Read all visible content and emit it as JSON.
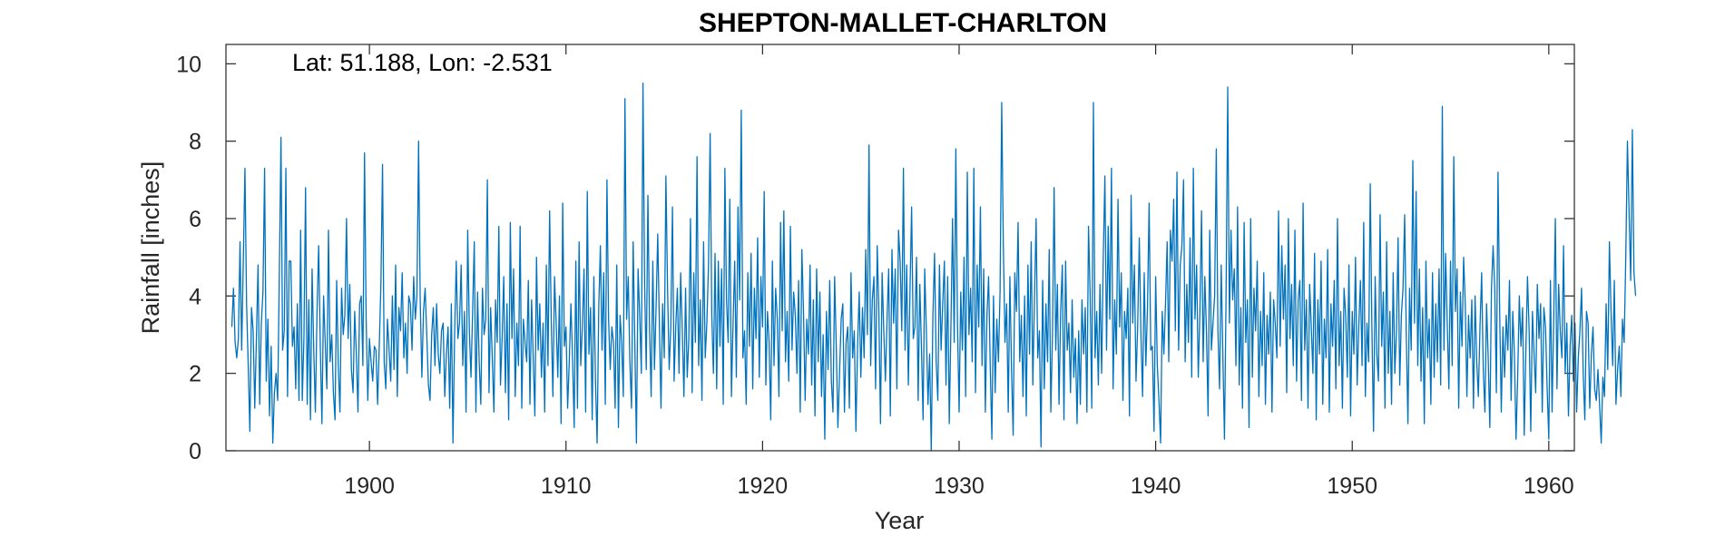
{
  "chart_data": {
    "type": "line",
    "title": "SHEPTON-MALLET-CHARLTON",
    "annotation": "Lat: 51.188, Lon: -2.531",
    "xlabel": "Year",
    "ylabel": "Rainfall [inches]",
    "xlim": [
      1892.7,
      1961.3
    ],
    "ylim": [
      0,
      10.5
    ],
    "xticks": [
      1900,
      1910,
      1920,
      1930,
      1940,
      1950,
      1960
    ],
    "yticks": [
      0,
      2,
      4,
      6,
      8,
      10
    ],
    "grid": false,
    "line_color": "#0072BD",
    "series": [
      {
        "x_start": 1893.0,
        "x_step_years": 0.0833333,
        "values": [
          3.2,
          4.2,
          2.8,
          2.4,
          2.9,
          5.4,
          2.6,
          4.9,
          7.3,
          3.8,
          2.2,
          0.5,
          3.7,
          3.1,
          1.1,
          2.9,
          4.8,
          1.2,
          3.3,
          4.1,
          7.3,
          1.8,
          3.4,
          0.9,
          2.7,
          0.2,
          1.5,
          2.0,
          1.3,
          4.6,
          8.1,
          2.6,
          3.1,
          7.3,
          1.4,
          4.9,
          4.9,
          2.7,
          3.2,
          1.6,
          3.8,
          1.3,
          5.7,
          1.3,
          2.9,
          6.8,
          1.2,
          3.9,
          0.8,
          4.7,
          2.6,
          1.0,
          3.6,
          5.3,
          2.7,
          0.7,
          4.0,
          2.8,
          1.6,
          5.7,
          2.3,
          3.0,
          1.5,
          0.8,
          4.4,
          2.2,
          1.0,
          4.2,
          3.0,
          3.5,
          6.0,
          2.9,
          4.3,
          2.1,
          1.5,
          3.6,
          2.5,
          1.0,
          3.8,
          4.0,
          2.2,
          7.7,
          3.4,
          1.3,
          2.9,
          2.3,
          1.8,
          2.7,
          2.6,
          1.2,
          2.7,
          4.3,
          7.4,
          2.3,
          1.6,
          3.4,
          2.6,
          1.8,
          4.0,
          2.1,
          4.8,
          1.4,
          3.7,
          3.1,
          4.6,
          2.4,
          3.3,
          2.0,
          4.0,
          3.8,
          2.6,
          4.5,
          3.4,
          4.0,
          8.0,
          3.9,
          1.9,
          3.6,
          4.2,
          3.0,
          1.7,
          1.3,
          3.0,
          3.7,
          2.2,
          3.8,
          2.5,
          2.0,
          3.1,
          3.3,
          1.4,
          2.5,
          3.2,
          1.1,
          3.8,
          0.2,
          3.0,
          4.9,
          2.9,
          3.3,
          4.8,
          2.2,
          3.6,
          1.0,
          5.7,
          3.1,
          1.9,
          3.6,
          5.4,
          1.0,
          4.1,
          2.3,
          1.2,
          4.2,
          3.0,
          3.4,
          7.0,
          1.5,
          3.7,
          2.4,
          1.0,
          3.9,
          2.8,
          5.8,
          1.7,
          2.9,
          4.5,
          1.5,
          3.8,
          0.8,
          5.9,
          2.9,
          4.7,
          1.4,
          3.3,
          2.2,
          5.8,
          1.1,
          3.4,
          2.8,
          2.3,
          4.4,
          1.2,
          3.9,
          2.4,
          0.9,
          5.0,
          2.6,
          3.8,
          1.9,
          3.3,
          1.0,
          4.8,
          2.2,
          6.2,
          3.4,
          1.4,
          4.5,
          3.3,
          1.9,
          4.0,
          0.7,
          6.4,
          2.7,
          3.2,
          1.1,
          2.3,
          3.8,
          2.4,
          0.6,
          4.9,
          1.1,
          5.4,
          2.2,
          3.2,
          4.7,
          1.0,
          6.7,
          2.5,
          3.7,
          0.8,
          4.5,
          1.8,
          0.2,
          3.7,
          5.3,
          2.6,
          4.6,
          1.2,
          7.0,
          3.4,
          2.1,
          3.2,
          2.8,
          1.1,
          4.8,
          0.6,
          3.5,
          2.8,
          1.4,
          9.1,
          3.4,
          4.5,
          2.3,
          1.1,
          5.4,
          2.8,
          0.2,
          4.7,
          3.5,
          2.0,
          9.5,
          4.3,
          2.1,
          6.6,
          3.2,
          1.4,
          4.9,
          2.1,
          3.7,
          5.6,
          3.3,
          1.1,
          3.8,
          2.4,
          7.1,
          4.2,
          2.1,
          3.2,
          6.3,
          1.8,
          3.2,
          4.2,
          2.0,
          4.6,
          3.1,
          1.4,
          4.2,
          1.9,
          2.9,
          6.0,
          1.5,
          4.6,
          2.8,
          7.6,
          2.2,
          3.9,
          1.3,
          5.4,
          2.4,
          3.3,
          4.8,
          8.2,
          3.5,
          2.0,
          5.1,
          1.6,
          4.9,
          2.7,
          4.7,
          1.2,
          7.3,
          3.9,
          2.8,
          6.5,
          1.4,
          3.3,
          4.9,
          1.9,
          6.3,
          3.9,
          8.8,
          2.4,
          3.1,
          1.2,
          4.6,
          2.7,
          5.1,
          1.6,
          4.2,
          2.9,
          5.5,
          1.9,
          4.5,
          3.2,
          6.7,
          1.7,
          3.6,
          2.8,
          0.8,
          4.9,
          2.2,
          4.2,
          3.4,
          1.4,
          5.9,
          3.1,
          6.2,
          2.3,
          3.6,
          1.8,
          5.8,
          2.6,
          4.1,
          3.5,
          2.0,
          4.4,
          1.0,
          5.2,
          3.6,
          1.3,
          3.4,
          2.5,
          4.8,
          1.7,
          3.9,
          0.9,
          4.7,
          2.3,
          4.1,
          1.4,
          3.0,
          0.3,
          3.6,
          2.1,
          4.4,
          1.8,
          1.0,
          4.5,
          2.7,
          0.6,
          2.0,
          3.4,
          3.8,
          1.0,
          2.8,
          3.2,
          1.1,
          4.6,
          2.4,
          3.1,
          0.5,
          2.7,
          4.1,
          1.9,
          3.7,
          2.4,
          5.2,
          3.0,
          7.9,
          2.2,
          3.9,
          4.5,
          1.6,
          5.3,
          3.6,
          0.7,
          4.6,
          3.1,
          1.8,
          3.4,
          4.7,
          0.9,
          5.2,
          3.3,
          4.7,
          1.6,
          5.7,
          4.9,
          3.1,
          7.3,
          2.6,
          4.8,
          1.7,
          4.1,
          6.3,
          2.9,
          3.2,
          5.0,
          1.3,
          4.3,
          2.7,
          0.8,
          4.7,
          3.1,
          1.2,
          2.5,
          0.0,
          3.5,
          5.1,
          2.3,
          1.3,
          4.8,
          2.6,
          3.8,
          4.9,
          1.7,
          4.5,
          0.7,
          3.2,
          6.0,
          2.8,
          7.8,
          3.3,
          1.0,
          4.1,
          2.6,
          5.0,
          1.4,
          7.2,
          3.0,
          4.2,
          2.3,
          7.3,
          1.5,
          4.8,
          3.2,
          6.3,
          2.2,
          4.7,
          1.0,
          3.5,
          4.5,
          2.2,
          0.3,
          4.0,
          1.5,
          3.4,
          2.3,
          4.1,
          9.0,
          5.3,
          2.8,
          3.8,
          1.0,
          4.5,
          2.1,
          0.4,
          4.6,
          3.6,
          5.9,
          2.3,
          3.5,
          1.4,
          4.0,
          0.9,
          4.8,
          2.5,
          5.4,
          1.7,
          3.9,
          6.0,
          2.4,
          3.1,
          0.1,
          4.4,
          1.6,
          3.8,
          2.3,
          5.2,
          1.0,
          3.0,
          6.8,
          2.6,
          4.3,
          1.2,
          3.6,
          4.8,
          0.8,
          4.9,
          2.6,
          3.3,
          1.5,
          3.9,
          1.9,
          2.9,
          0.7,
          3.1,
          1.2,
          3.9,
          2.5,
          3.7,
          1.0,
          5.8,
          4.0,
          1.1,
          9.0,
          2.4,
          3.6,
          1.7,
          4.3,
          2.0,
          5.0,
          7.1,
          2.6,
          5.8,
          3.4,
          7.3,
          1.6,
          3.9,
          2.5,
          6.5,
          3.2,
          4.6,
          1.3,
          3.6,
          2.9,
          4.2,
          0.9,
          6.6,
          3.3,
          4.8,
          1.8,
          3.2,
          5.5,
          3.0,
          1.4,
          4.6,
          2.2,
          3.7,
          6.4,
          2.6,
          2.7,
          0.5,
          4.5,
          2.2,
          1.3,
          0.2,
          3.6,
          2.5,
          3.8,
          5.4,
          2.3,
          5.7,
          4.9,
          6.5,
          3.1,
          7.2,
          2.6,
          4.8,
          5.3,
          7.0,
          2.3,
          4.3,
          2.8,
          5.5,
          1.9,
          7.3,
          3.4,
          4.8,
          1.9,
          3.6,
          6.2,
          2.3,
          4.5,
          3.1,
          0.9,
          5.7,
          2.6,
          3.3,
          4.0,
          7.8,
          3.1,
          1.6,
          4.8,
          2.5,
          0.3,
          4.1,
          9.4,
          3.3,
          5.7,
          3.9,
          4.7,
          2.2,
          6.3,
          1.7,
          3.7,
          1.1,
          5.9,
          2.8,
          3.9,
          0.6,
          6.0,
          1.9,
          4.2,
          3.1,
          4.9,
          1.4,
          3.6,
          2.2,
          4.6,
          1.2,
          3.5,
          2.5,
          4.1,
          1.0,
          3.9,
          3.3,
          2.4,
          6.2,
          2.7,
          5.3,
          3.4,
          4.8,
          1.5,
          6.0,
          2.9,
          4.3,
          2.2,
          5.7,
          1.8,
          3.9,
          4.4,
          1.3,
          6.4,
          2.6,
          3.9,
          1.1,
          4.3,
          3.2,
          2.0,
          5.1,
          0.8,
          3.9,
          2.5,
          4.9,
          1.2,
          3.4,
          2.4,
          5.2,
          1.0,
          3.8,
          2.7,
          4.4,
          1.6,
          6.0,
          2.2,
          3.6,
          1.1,
          4.2,
          3.5,
          1.9,
          4.8,
          0.9,
          3.6,
          2.5,
          5.0,
          1.7,
          3.2,
          4.4,
          2.2,
          5.9,
          1.4,
          3.3,
          2.3,
          6.9,
          3.2,
          0.5,
          4.5,
          2.5,
          1.8,
          6.1,
          2.7,
          4.1,
          1.1,
          5.4,
          2.0,
          3.6,
          1.2,
          4.6,
          2.0,
          3.1,
          5.5,
          1.7,
          3.5,
          4.2,
          6.1,
          3.0,
          0.7,
          4.2,
          2.6,
          7.5,
          3.3,
          6.7,
          2.2,
          4.7,
          1.8,
          3.7,
          0.7,
          4.9,
          2.4,
          3.4,
          1.2,
          4.6,
          1.9,
          3.8,
          2.3,
          4.7,
          1.7,
          8.9,
          2.6,
          5.1,
          3.3,
          1.6,
          4.9,
          2.2,
          7.6,
          3.6,
          4.7,
          1.1,
          4.1,
          2.7,
          5.0,
          3.8,
          1.4,
          3.5,
          2.4,
          3.9,
          1.1,
          4.0,
          2.3,
          1.4,
          3.2,
          4.6,
          2.1,
          1.0,
          3.8,
          2.4,
          0.6,
          4.2,
          5.3,
          4.2,
          1.5,
          7.2,
          3.6,
          1.0,
          3.2,
          1.9,
          3.5,
          2.6,
          4.4,
          1.3,
          3.6,
          2.5,
          0.3,
          1.9,
          4.0,
          2.7,
          3.7,
          0.4,
          2.6,
          4.5,
          3.1,
          0.5,
          3.6,
          2.5,
          1.5,
          4.3,
          2.9,
          3.8,
          1.0,
          3.7,
          3.2,
          1.6,
          0.3,
          4.4,
          1.0,
          3.4,
          6.0,
          1.6,
          4.3,
          3.1,
          2.4,
          5.3,
          2.0,
          3.3,
          0.9,
          2.7,
          3.5,
          1.8,
          3.3,
          1.0,
          2.4,
          3.1,
          4.2,
          2.0,
          0.8,
          3.6,
          3.3,
          1.1,
          2.5,
          3.2,
          1.6,
          1.3,
          2.1,
          1.2,
          0.2,
          1.9,
          1.4,
          3.8,
          2.1,
          5.4,
          3.6,
          2.2,
          4.4,
          1.2,
          2.1,
          2.7,
          1.4,
          3.4,
          2.8,
          5.0,
          8.0,
          6.2,
          4.4,
          8.3,
          4.6,
          4.0
        ]
      }
    ]
  }
}
